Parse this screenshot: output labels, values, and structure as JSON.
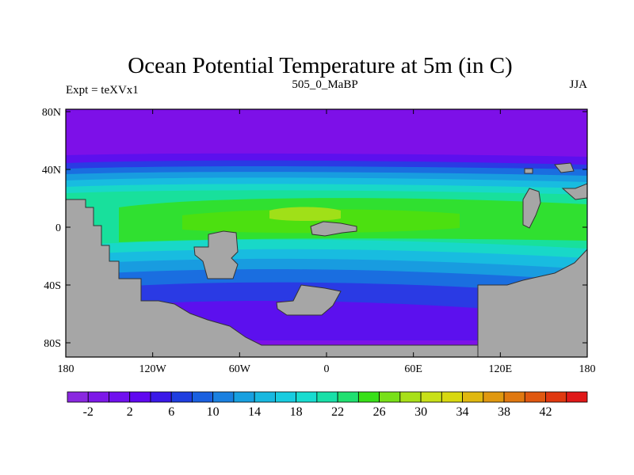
{
  "title": "Ocean Potential Temperature at 5m (in C)",
  "subtitle_left": "Expt = teXVx1",
  "subtitle_center": "505_0_MaBP",
  "subtitle_right": "JJA",
  "y_ticks": [
    "80N",
    "40N",
    "0",
    "40S",
    "80S"
  ],
  "x_ticks": [
    "180",
    "120W",
    "60W",
    "0",
    "60E",
    "120E",
    "180"
  ],
  "colorbar_labels": [
    "-2",
    "2",
    "6",
    "10",
    "14",
    "18",
    "22",
    "26",
    "30",
    "34",
    "38",
    "42"
  ],
  "colors": {
    "land": "#a6a6a6",
    "cold": "#7d10e8",
    "palette": [
      "#8a28e0",
      "#7d18e8",
      "#7010ee",
      "#6008f0",
      "#3a18e8",
      "#1f3ee0",
      "#1a60e0",
      "#1a80e0",
      "#18a0e0",
      "#18b8e0",
      "#18cce0",
      "#18dcd0",
      "#18e0a8",
      "#20e070",
      "#38e018",
      "#78e018",
      "#a8e018",
      "#c8e018",
      "#d8d810",
      "#e0b810",
      "#e09810",
      "#e07810",
      "#e05810",
      "#e03810",
      "#e01818"
    ]
  }
}
